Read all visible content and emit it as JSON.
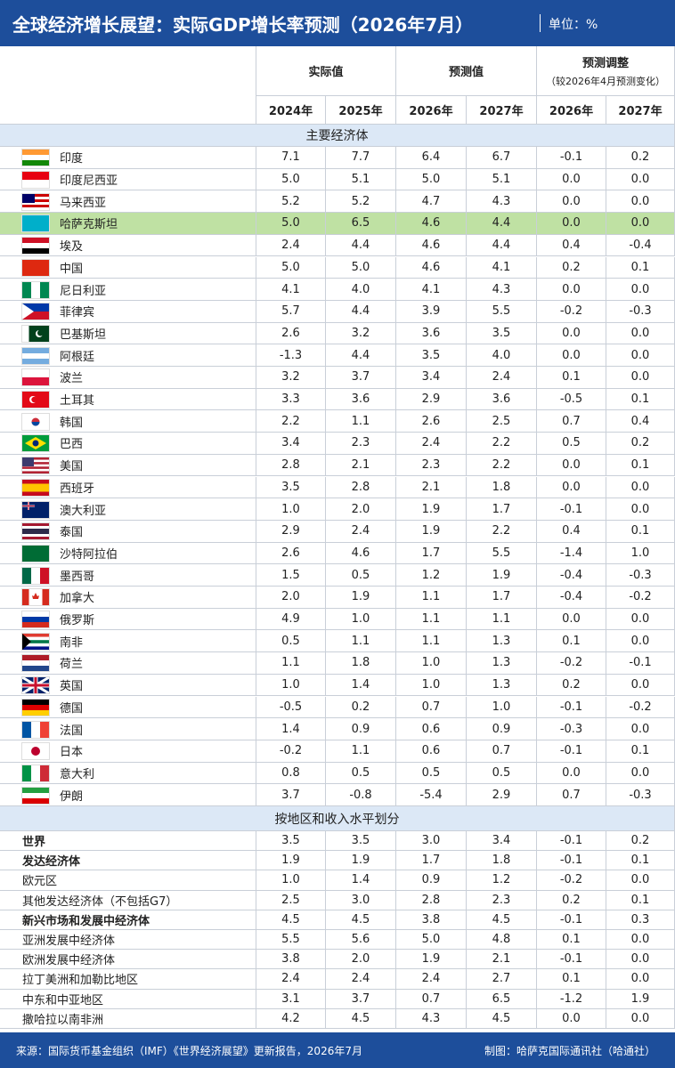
{
  "header": {
    "title": "全球经济增长展望：实际GDP增长率预测（2026年7月）",
    "unit": "单位：%"
  },
  "table": {
    "column_groups": [
      "实际值",
      "预测值",
      "预测调整"
    ],
    "adjust_note": "（较2026年4月预测变化）",
    "years": [
      "2024年",
      "2025年",
      "2026年",
      "2027年",
      "2026年",
      "2027年"
    ],
    "sections": [
      {
        "title": "主要经济体",
        "rows": [
          [
            "印度",
            "7.1",
            "7.7",
            "6.4",
            "6.7",
            "-0.1",
            "0.2"
          ],
          [
            "印度尼西亚",
            "5.0",
            "5.1",
            "5.0",
            "5.1",
            "0.0",
            "0.0"
          ],
          [
            "马来西亚",
            "5.2",
            "5.2",
            "4.7",
            "4.3",
            "0.0",
            "0.0"
          ],
          [
            "哈萨克斯坦",
            "5.0",
            "6.5",
            "4.6",
            "4.4",
            "0.0",
            "0.0"
          ],
          [
            "埃及",
            "2.4",
            "4.4",
            "4.6",
            "4.4",
            "0.4",
            "-0.4"
          ],
          [
            "中国",
            "5.0",
            "5.0",
            "4.6",
            "4.1",
            "0.2",
            "0.1"
          ],
          [
            "尼日利亚",
            "4.1",
            "4.0",
            "4.1",
            "4.3",
            "0.0",
            "0.0"
          ],
          [
            "菲律宾",
            "5.7",
            "4.4",
            "3.9",
            "5.5",
            "-0.2",
            "-0.3"
          ],
          [
            "巴基斯坦",
            "2.6",
            "3.2",
            "3.6",
            "3.5",
            "0.0",
            "0.0"
          ],
          [
            "阿根廷",
            "-1.3",
            "4.4",
            "3.5",
            "4.0",
            "0.0",
            "0.0"
          ],
          [
            "波兰",
            "3.2",
            "3.7",
            "3.4",
            "2.4",
            "0.1",
            "0.0"
          ],
          [
            "土耳其",
            "3.3",
            "3.6",
            "2.9",
            "3.6",
            "-0.5",
            "0.1"
          ],
          [
            "韩国",
            "2.2",
            "1.1",
            "2.6",
            "2.5",
            "0.7",
            "0.4"
          ],
          [
            "巴西",
            "3.4",
            "2.3",
            "2.4",
            "2.2",
            "0.5",
            "0.2"
          ],
          [
            "美国",
            "2.8",
            "2.1",
            "2.3",
            "2.2",
            "0.0",
            "0.1"
          ],
          [
            "西班牙",
            "3.5",
            "2.8",
            "2.1",
            "1.8",
            "0.0",
            "0.0"
          ],
          [
            "澳大利亚",
            "1.0",
            "2.0",
            "1.9",
            "1.7",
            "-0.1",
            "0.0"
          ],
          [
            "泰国",
            "2.9",
            "2.4",
            "1.9",
            "2.2",
            "0.4",
            "0.1"
          ],
          [
            "沙特阿拉伯",
            "2.6",
            "4.6",
            "1.7",
            "5.5",
            "-1.4",
            "1.0"
          ],
          [
            "墨西哥",
            "1.5",
            "0.5",
            "1.2",
            "1.9",
            "-0.4",
            "-0.3"
          ],
          [
            "加拿大",
            "2.0",
            "1.9",
            "1.1",
            "1.7",
            "-0.4",
            "-0.2"
          ],
          [
            "俄罗斯",
            "4.9",
            "1.0",
            "1.1",
            "1.1",
            "0.0",
            "0.0"
          ],
          [
            "南非",
            "0.5",
            "1.1",
            "1.1",
            "1.3",
            "0.1",
            "0.0"
          ],
          [
            "荷兰",
            "1.1",
            "1.8",
            "1.0",
            "1.3",
            "-0.2",
            "-0.1"
          ],
          [
            "英国",
            "1.0",
            "1.4",
            "1.0",
            "1.3",
            "0.2",
            "0.0"
          ],
          [
            "德国",
            "-0.5",
            "0.2",
            "0.7",
            "1.0",
            "-0.1",
            "-0.2"
          ],
          [
            "法国",
            "1.4",
            "0.9",
            "0.6",
            "0.9",
            "-0.3",
            "0.0"
          ],
          [
            "日本",
            "-0.2",
            "1.1",
            "0.6",
            "0.7",
            "-0.1",
            "0.1"
          ],
          [
            "意大利",
            "0.8",
            "0.5",
            "0.5",
            "0.5",
            "0.0",
            "0.0"
          ],
          [
            "伊朗",
            "3.7",
            "-0.8",
            "-5.4",
            "2.9",
            "0.7",
            "-0.3"
          ]
        ]
      },
      {
        "title": "按地区和收入水平划分",
        "rows": [
          [
            "世界",
            "3.5",
            "3.5",
            "3.0",
            "3.4",
            "-0.1",
            "0.2"
          ],
          [
            "发达经济体",
            "1.9",
            "1.9",
            "1.7",
            "1.8",
            "-0.1",
            "0.1"
          ],
          [
            "欧元区",
            "1.0",
            "1.4",
            "0.9",
            "1.2",
            "-0.2",
            "0.0"
          ],
          [
            "其他发达经济体（不包括G7）",
            "2.5",
            "3.0",
            "2.8",
            "2.3",
            "0.2",
            "0.1"
          ],
          [
            "新兴市场和发展中经济体",
            "4.5",
            "4.5",
            "3.8",
            "4.5",
            "-0.1",
            "0.3"
          ],
          [
            "亚洲发展中经济体",
            "5.5",
            "5.6",
            "5.0",
            "4.8",
            "0.1",
            "0.0"
          ],
          [
            "欧洲发展中经济体",
            "3.8",
            "2.0",
            "1.9",
            "2.1",
            "-0.1",
            "0.0"
          ],
          [
            "拉丁美洲和加勒比地区",
            "2.4",
            "2.4",
            "2.4",
            "2.7",
            "0.1",
            "0.0"
          ],
          [
            "中东和中亚地区",
            "3.1",
            "3.7",
            "0.7",
            "6.5",
            "-1.2",
            "1.9"
          ],
          [
            "撒哈拉以南非洲",
            "4.2",
            "4.5",
            "4.3",
            "4.5",
            "0.0",
            "0.0"
          ]
        ]
      }
    ]
  },
  "footer": {
    "source": "来源：国际货币基金组织（IMF）《世界经济展望》更新报告，2026年7月",
    "credit": "制图：哈萨克国际通讯社（哈通社）"
  }
}
